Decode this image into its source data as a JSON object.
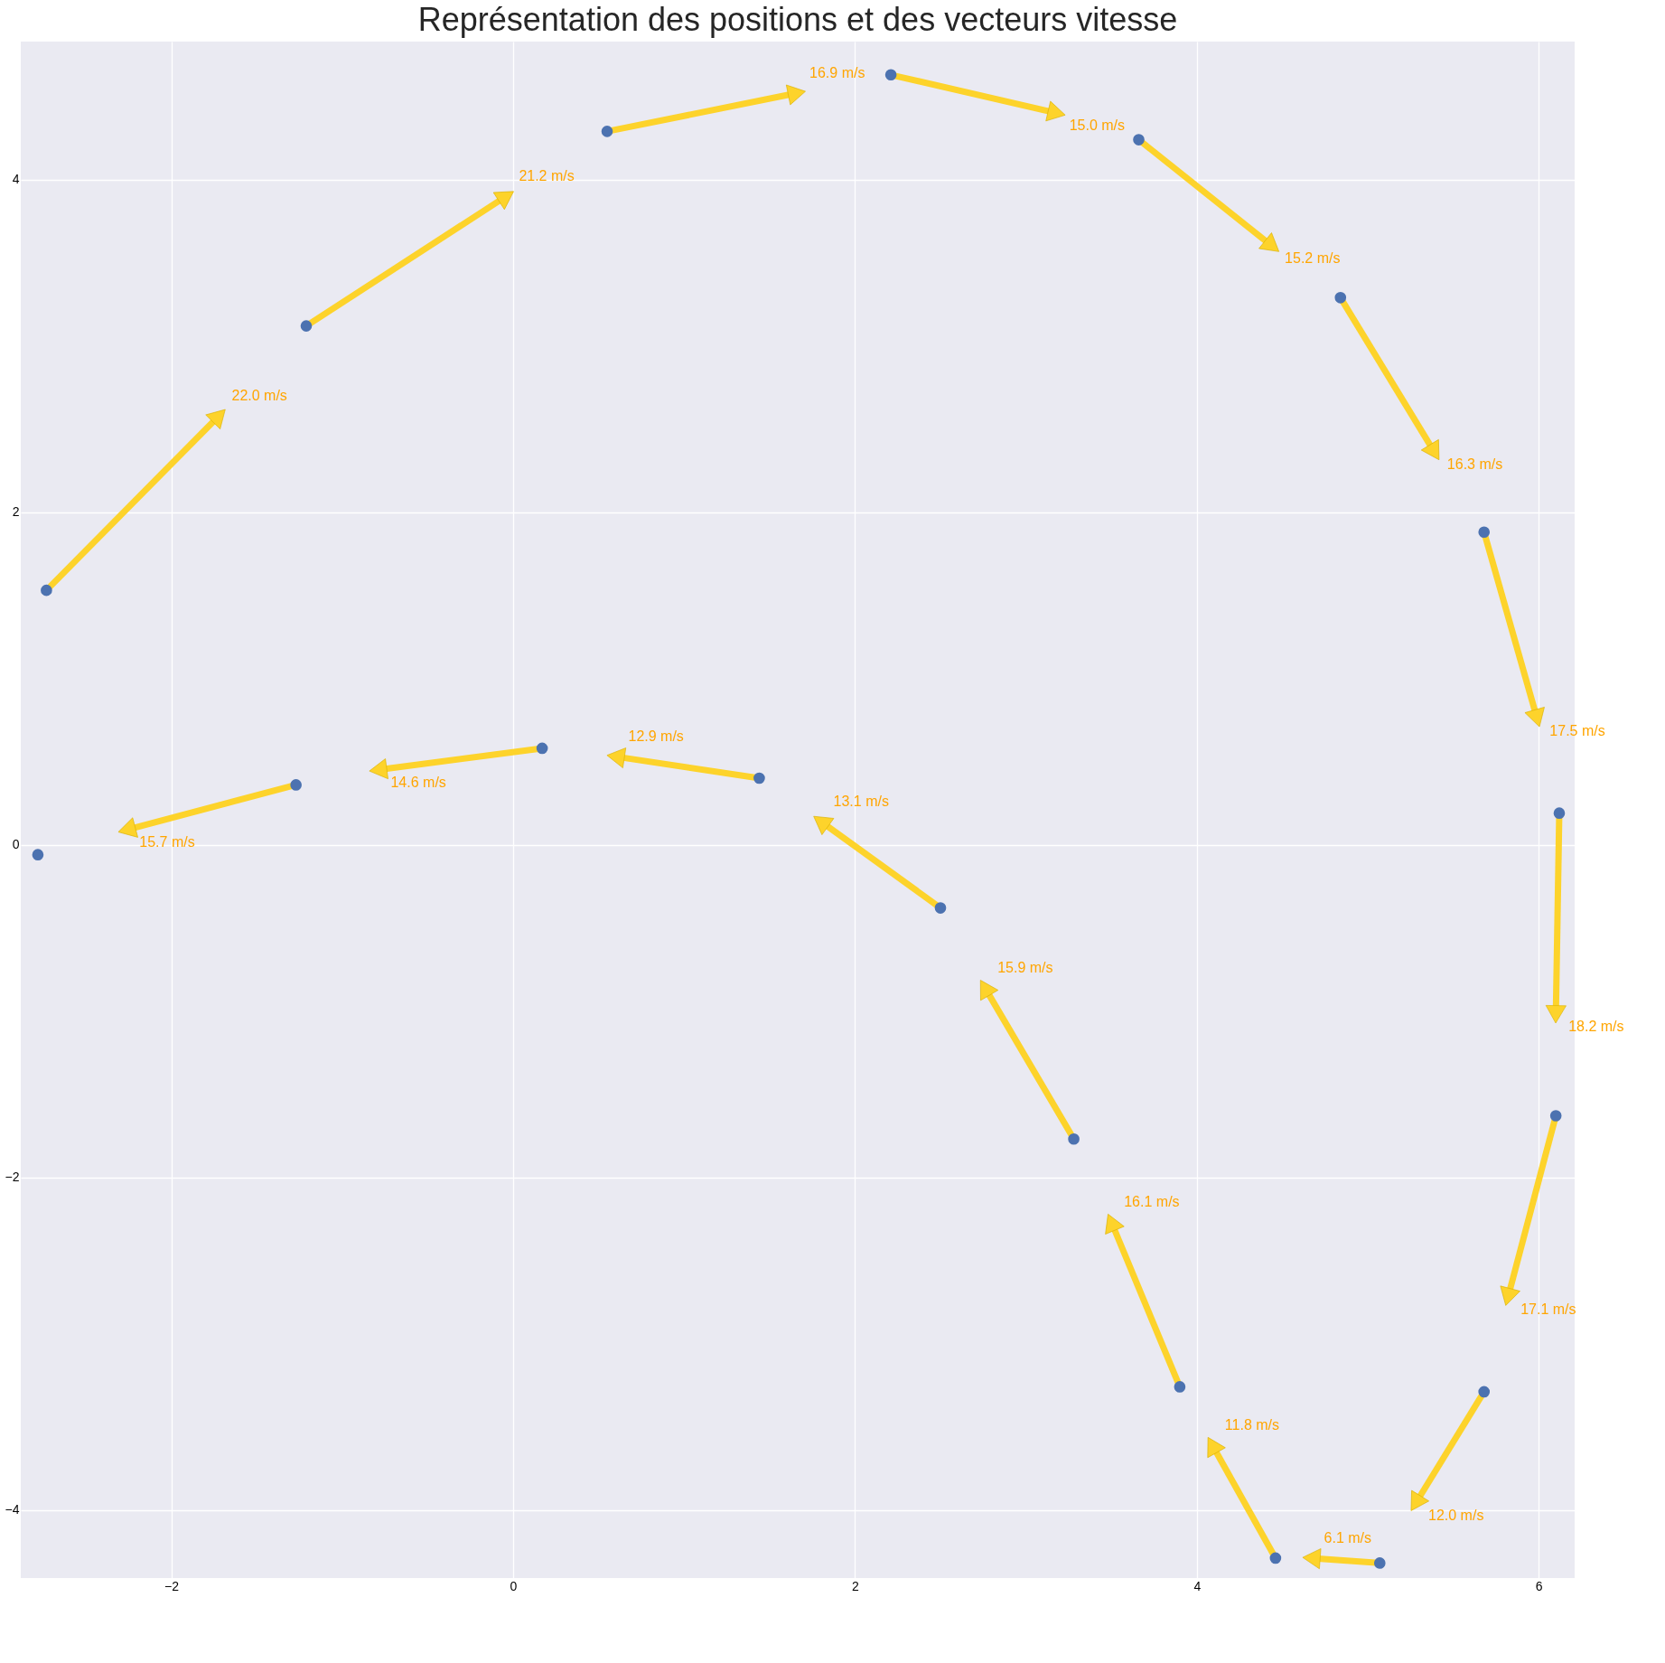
{
  "chart_data": {
    "type": "scatter",
    "title": "Représentation des positions et des vecteurs vitesse",
    "xlim": [
      -2.88,
      6.21
    ],
    "ylim": [
      -4.41,
      4.83
    ],
    "xticks": [
      -2,
      0,
      2,
      4,
      6
    ],
    "yticks": [
      -4,
      -2,
      0,
      2,
      4
    ],
    "grid": true,
    "marker": "circle",
    "series": [
      {
        "type": "line",
        "color": "#fdd32b",
        "line_style": "solid",
        "marker": "triangle",
        "x": [
          -2.73,
          -1.72,
          null,
          -1.21,
          -0.04,
          null,
          0.55,
          1.66,
          null,
          2.21,
          3.18,
          null,
          3.66,
          4.44,
          null,
          4.84,
          5.39,
          null,
          5.68,
          5.99,
          null,
          6.12,
          6.1,
          null,
          6.1,
          5.82,
          null,
          5.68,
          5.28,
          null,
          5.07,
          4.67,
          null,
          4.46,
          4.09,
          null,
          3.9,
          3.5,
          null,
          3.28,
          2.76,
          null,
          2.5,
          1.8,
          null,
          1.44,
          0.6,
          null,
          0.17,
          -0.79,
          null,
          -1.27,
          -2.26
        ],
        "values": [
          1.53,
          2.58,
          null,
          3.12,
          3.9,
          null,
          4.29,
          4.52,
          null,
          4.63,
          4.4,
          null,
          4.24,
          3.6,
          null,
          3.29,
          2.36,
          null,
          1.88,
          0.76,
          null,
          0.19,
          -1.02,
          null,
          -1.63,
          -2.72,
          null,
          -3.29,
          -3.96,
          null,
          -4.32,
          -4.29,
          null,
          -4.29,
          -3.61,
          null,
          -3.26,
          -2.27,
          null,
          -1.77,
          -0.86,
          null,
          -0.38,
          0.14,
          null,
          0.4,
          0.53,
          null,
          0.58,
          0.45,
          null,
          0.36,
          0.09
        ]
      },
      {
        "color": "#4c72b0",
        "x": [
          -2.78,
          -2.73,
          -1.21,
          0.55,
          2.21,
          3.66,
          4.84,
          5.68,
          6.12,
          6.1,
          5.68,
          5.07,
          4.46,
          3.9,
          3.28,
          2.5,
          1.44,
          0.17,
          -1.27
        ],
        "values": [
          -0.06,
          1.53,
          3.12,
          4.29,
          4.63,
          4.24,
          3.29,
          1.88,
          0.19,
          -1.63,
          -3.29,
          -4.32,
          -4.29,
          -3.26,
          -1.77,
          -0.38,
          0.4,
          0.58,
          0.36
        ]
      }
    ],
    "annotations": [
      "22.0 m/s",
      "21.2 m/s",
      "16.9 m/s",
      "15.0 m/s",
      "15.2 m/s",
      "16.3 m/s",
      "17.5 m/s",
      "18.2 m/s",
      "17.1 m/s",
      "12.0 m/s",
      "6.1 m/s",
      "11.8 m/s",
      "16.1 m/s",
      "15.9 m/s",
      "13.1 m/s",
      "12.9 m/s",
      "14.6 m/s",
      "15.7 m/s"
    ]
  }
}
